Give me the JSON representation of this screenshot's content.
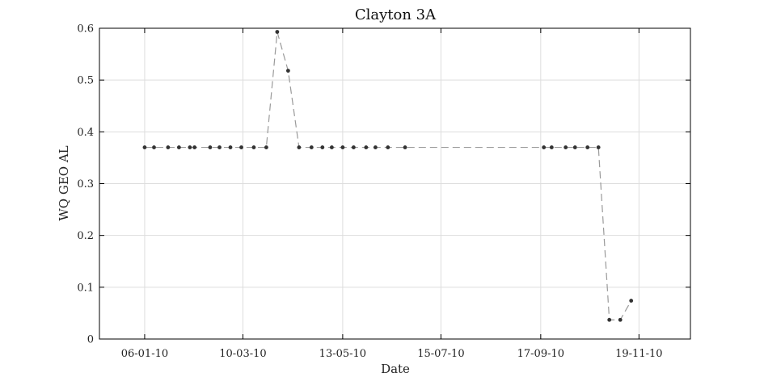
{
  "chart_data": {
    "type": "line",
    "title": "Clayton 3A",
    "xlabel": "Date",
    "ylabel": "WQ GEO AL",
    "x_axis_type": "date",
    "xlim": [
      "2009-12-08",
      "2010-12-22"
    ],
    "ylim": [
      0,
      0.6
    ],
    "x_ticks": [
      {
        "date": "2010-01-06",
        "label": "06-01-10"
      },
      {
        "date": "2010-03-10",
        "label": "10-03-10"
      },
      {
        "date": "2010-05-13",
        "label": "13-05-10"
      },
      {
        "date": "2010-07-15",
        "label": "15-07-10"
      },
      {
        "date": "2010-09-17",
        "label": "17-09-10"
      },
      {
        "date": "2010-11-19",
        "label": "19-11-10"
      }
    ],
    "y_ticks": [
      {
        "value": 0,
        "label": "0"
      },
      {
        "value": 0.1,
        "label": "0.1"
      },
      {
        "value": 0.2,
        "label": "0.2"
      },
      {
        "value": 0.3,
        "label": "0.3"
      },
      {
        "value": 0.4,
        "label": "0.4"
      },
      {
        "value": 0.5,
        "label": "0.5"
      },
      {
        "value": 0.6,
        "label": "0.6"
      }
    ],
    "grid": true,
    "colors": {
      "line": "#9a9a9a",
      "marker": "#333333",
      "grid": "#dddddd",
      "axis": "#000000"
    },
    "series": [
      {
        "points": [
          {
            "x": "2010-01-06",
            "y": 0.37
          },
          {
            "x": "2010-01-12",
            "y": 0.37
          },
          {
            "x": "2010-01-21",
            "y": 0.37
          },
          {
            "x": "2010-01-28",
            "y": 0.37
          },
          {
            "x": "2010-02-04",
            "y": 0.37
          },
          {
            "x": "2010-02-07",
            "y": 0.37
          },
          {
            "x": "2010-02-17",
            "y": 0.37
          },
          {
            "x": "2010-02-23",
            "y": 0.37
          },
          {
            "x": "2010-03-02",
            "y": 0.37
          },
          {
            "x": "2010-03-09",
            "y": 0.37
          },
          {
            "x": "2010-03-17",
            "y": 0.37
          },
          {
            "x": "2010-03-25",
            "y": 0.37
          },
          {
            "x": "2010-04-01",
            "y": 0.593
          },
          {
            "x": "2010-04-08",
            "y": 0.518
          },
          {
            "x": "2010-04-15",
            "y": 0.37
          },
          {
            "x": "2010-04-23",
            "y": 0.37
          },
          {
            "x": "2010-04-30",
            "y": 0.37
          },
          {
            "x": "2010-05-06",
            "y": 0.37
          },
          {
            "x": "2010-05-13",
            "y": 0.37
          },
          {
            "x": "2010-05-20",
            "y": 0.37
          },
          {
            "x": "2010-05-28",
            "y": 0.37
          },
          {
            "x": "2010-06-03",
            "y": 0.37
          },
          {
            "x": "2010-06-11",
            "y": 0.37
          },
          {
            "x": "2010-06-22",
            "y": 0.37
          },
          {
            "x": "2010-09-19",
            "y": 0.37
          },
          {
            "x": "2010-09-24",
            "y": 0.37
          },
          {
            "x": "2010-10-03",
            "y": 0.37
          },
          {
            "x": "2010-10-09",
            "y": 0.37
          },
          {
            "x": "2010-10-17",
            "y": 0.37
          },
          {
            "x": "2010-10-24",
            "y": 0.37
          },
          {
            "x": "2010-10-31",
            "y": 0.037
          },
          {
            "x": "2010-11-07",
            "y": 0.037
          },
          {
            "x": "2010-11-14",
            "y": 0.074
          }
        ]
      }
    ]
  }
}
